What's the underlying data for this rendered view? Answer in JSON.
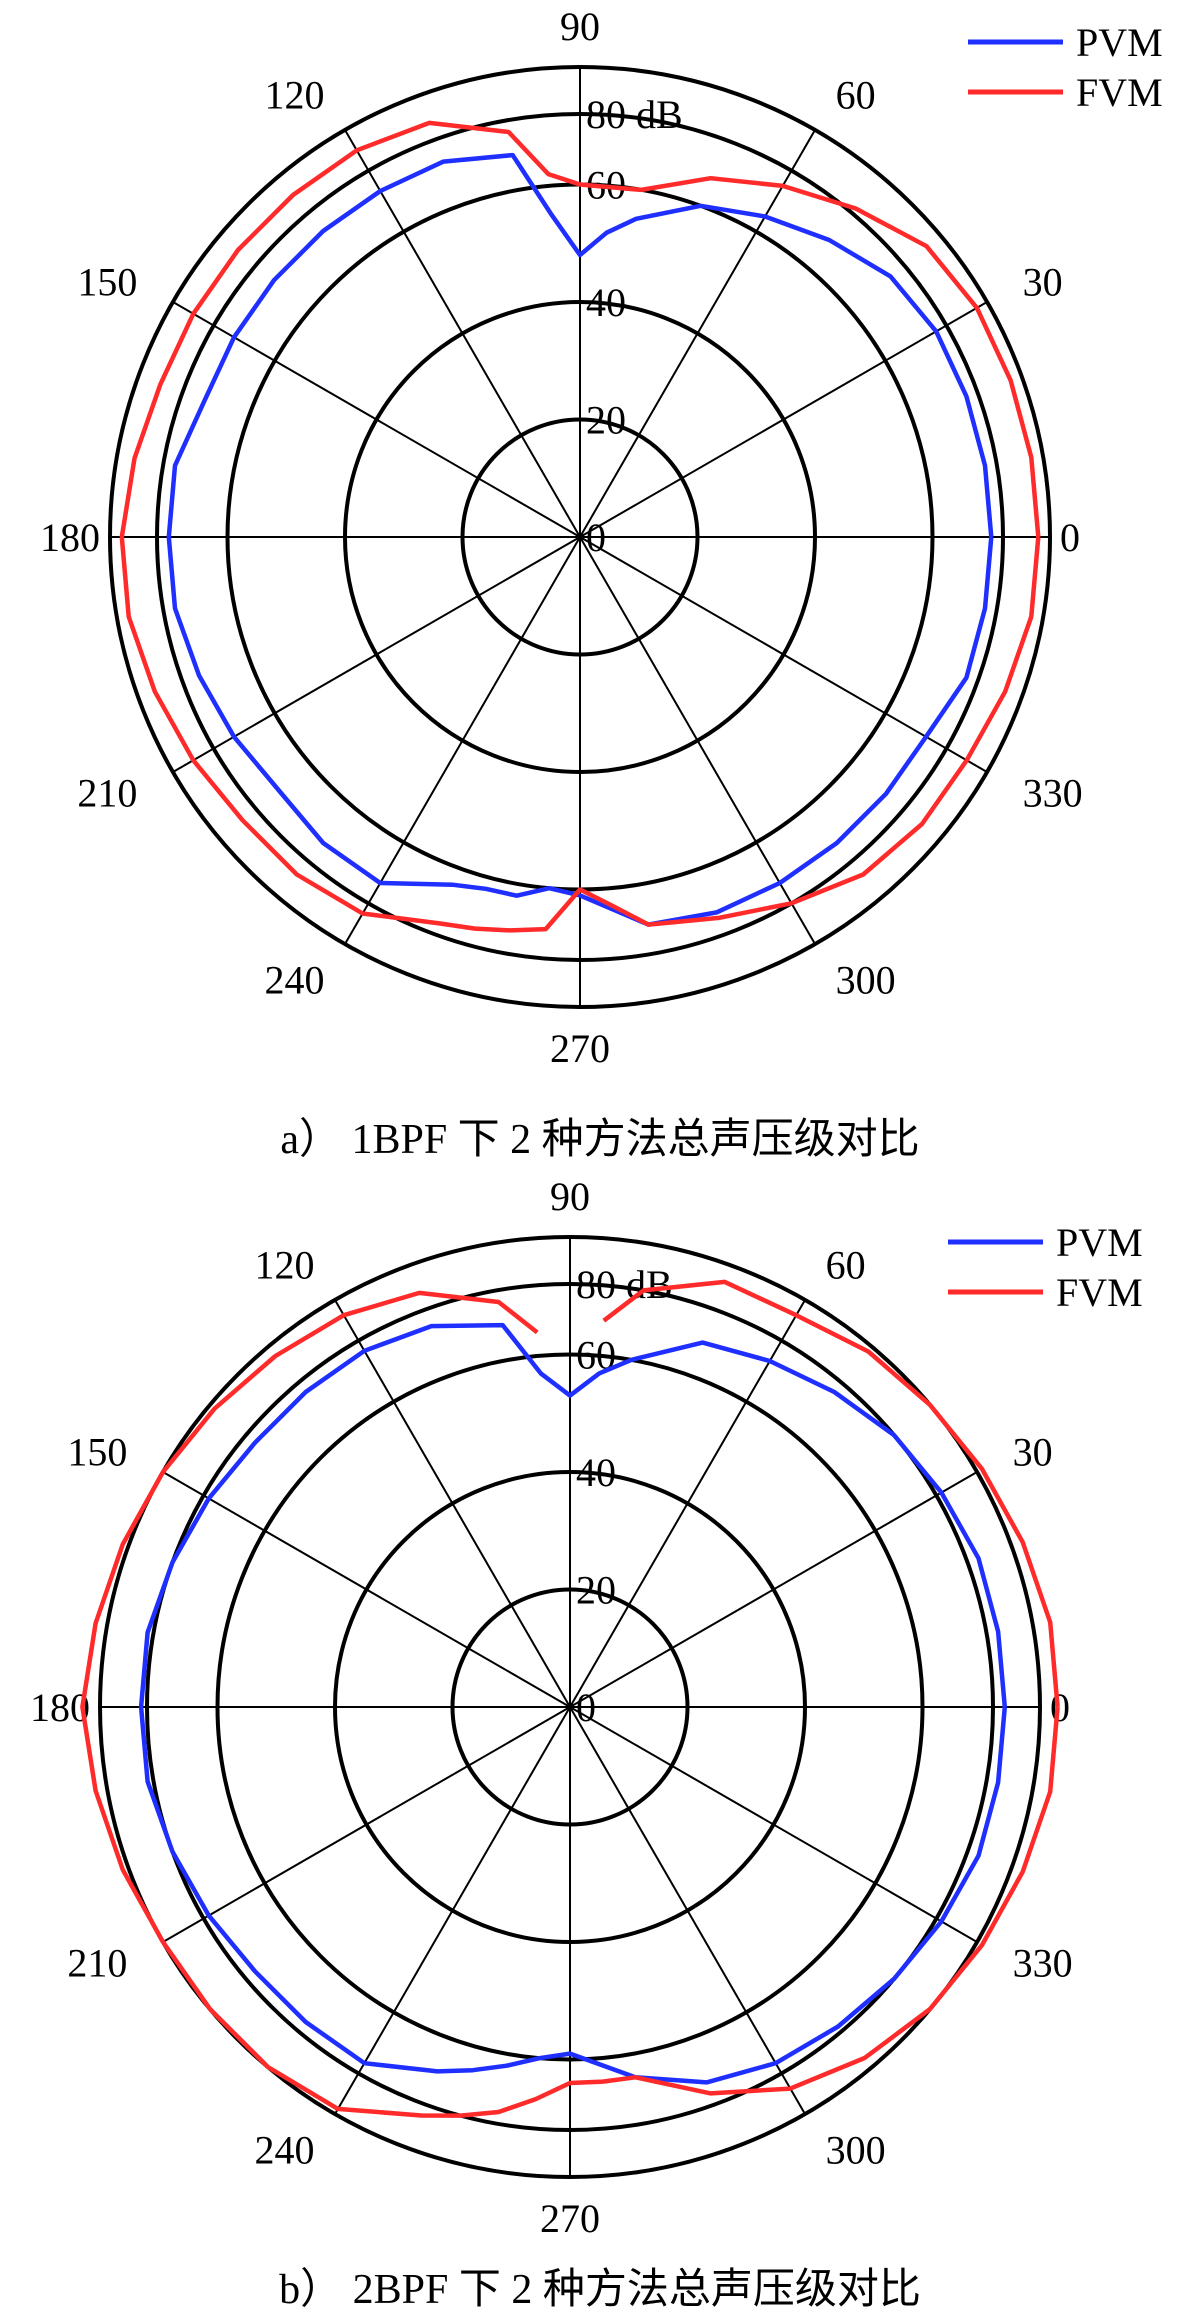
{
  "chart_data": [
    {
      "type": "polar-line",
      "caption": "a） 1BPF 下 2 种方法总声压级对比",
      "unit_label": "80 dB",
      "radial_ticks": [
        "0",
        "20",
        "40",
        "60",
        "80 dB"
      ],
      "angle_ticks": [
        "0",
        "30",
        "60",
        "90",
        "120",
        "150",
        "180",
        "210",
        "240",
        "270",
        "300",
        "330"
      ],
      "r_range": [
        0,
        80
      ],
      "grid": true,
      "legend_position": "top-right",
      "colors": {
        "PVM": "#1f2fff",
        "FVM": "#ff2a2a"
      },
      "series": [
        {
          "name": "PVM",
          "theta": [
            0,
            10,
            20,
            30,
            40,
            50,
            60,
            70,
            80,
            85,
            90,
            95,
            100,
            110,
            120,
            130,
            140,
            150,
            160,
            170,
            180,
            190,
            200,
            210,
            220,
            230,
            240,
            250,
            255,
            260,
            265,
            270,
            280,
            290,
            300,
            310,
            320,
            330,
            340,
            350,
            360
          ],
          "r": [
            70,
            70,
            70,
            70,
            69,
            66,
            63,
            60,
            55,
            52,
            48,
            55,
            66,
            68,
            68,
            68,
            68,
            68,
            68,
            70,
            70,
            70,
            69,
            68,
            67,
            68,
            68,
            63,
            62,
            62,
            60,
            61,
            67,
            68,
            68,
            68,
            68,
            68,
            70,
            70,
            70
          ]
        },
        {
          "name": "FVM",
          "theta": [
            0,
            10,
            20,
            30,
            40,
            50,
            60,
            70,
            80,
            90,
            95,
            100,
            110,
            120,
            130,
            140,
            150,
            160,
            170,
            180,
            190,
            200,
            210,
            220,
            230,
            240,
            250,
            255,
            260,
            265,
            270,
            275,
            280,
            290,
            300,
            310,
            320,
            330,
            340,
            350,
            360
          ],
          "r": [
            78,
            78,
            78,
            78,
            77,
            73,
            69,
            65,
            60,
            60,
            62,
            70,
            75,
            76,
            76,
            76,
            76,
            76,
            77,
            78,
            78,
            77,
            76,
            75,
            75,
            74,
            70,
            69,
            68,
            67,
            60,
            63,
            67,
            69,
            72,
            75,
            76,
            76,
            77,
            78,
            78
          ]
        }
      ]
    },
    {
      "type": "polar-line",
      "caption": "b） 2BPF 下 2 种方法总声压级对比",
      "unit_label": "80 dB",
      "radial_ticks": [
        "0",
        "20",
        "40",
        "60",
        "80 dB"
      ],
      "angle_ticks": [
        "0",
        "30",
        "60",
        "90",
        "120",
        "150",
        "180",
        "210",
        "240",
        "270",
        "300",
        "330"
      ],
      "r_range": [
        0,
        80
      ],
      "grid": true,
      "legend_position": "top-right",
      "colors": {
        "PVM": "#1f2fff",
        "FVM": "#ff2a2a"
      },
      "series": [
        {
          "name": "PVM",
          "theta": [
            0,
            10,
            20,
            30,
            40,
            50,
            60,
            70,
            80,
            85,
            90,
            95,
            100,
            110,
            120,
            130,
            140,
            150,
            160,
            170,
            180,
            190,
            200,
            210,
            220,
            230,
            240,
            250,
            255,
            260,
            265,
            270,
            280,
            290,
            300,
            310,
            320,
            330,
            340,
            350,
            360
          ],
          "r": [
            74,
            74,
            74,
            73,
            72,
            70,
            68,
            66,
            60,
            57,
            53,
            57,
            66,
            69,
            70,
            70,
            70,
            71,
            72,
            73,
            73,
            73,
            72,
            71,
            70,
            70,
            70,
            66,
            64,
            62,
            60,
            59,
            64,
            68,
            70,
            71,
            72,
            73,
            74,
            74,
            74
          ]
        },
        {
          "name": "FVM",
          "theta": [
            0,
            10,
            20,
            30,
            40,
            50,
            60,
            70,
            80,
            85,
            90,
            95,
            100,
            110,
            120,
            130,
            140,
            150,
            160,
            170,
            180,
            190,
            200,
            210,
            220,
            230,
            240,
            250,
            255,
            260,
            265,
            270,
            275,
            280,
            290,
            300,
            310,
            320,
            330,
            340,
            350,
            360
          ],
          "r": [
            83,
            83,
            82,
            81,
            80,
            79,
            77,
            77,
            72,
            66,
            null,
            64,
            70,
            75,
            77,
            78,
            79,
            80,
            81,
            82,
            83,
            82,
            81,
            80,
            80,
            80,
            79,
            74,
            72,
            70,
            67,
            64,
            64,
            64,
            70,
            75,
            78,
            80,
            81,
            82,
            83,
            83
          ]
        }
      ]
    }
  ]
}
